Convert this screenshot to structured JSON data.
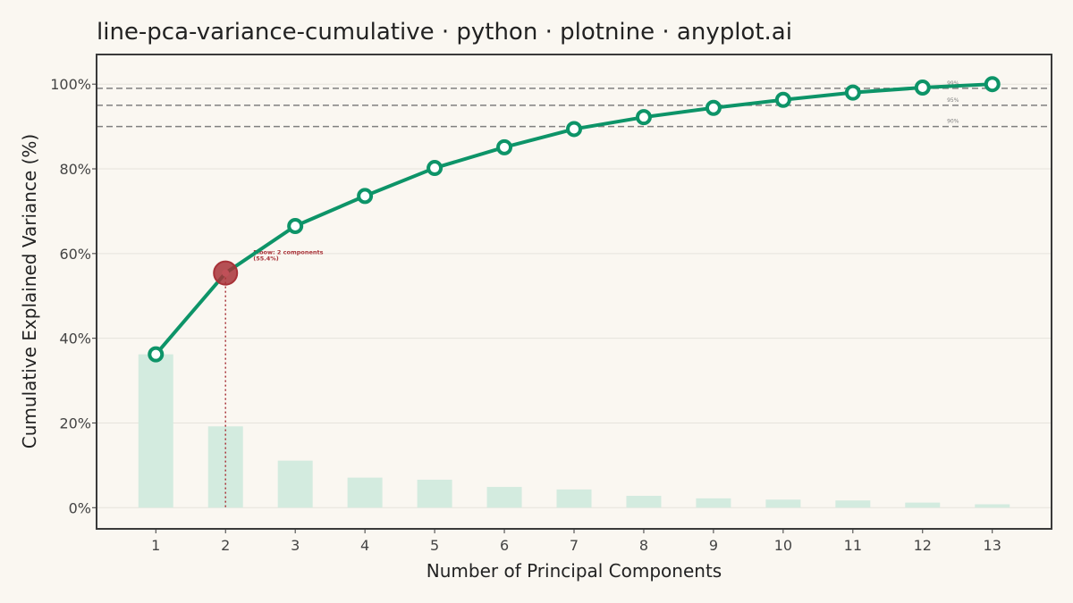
{
  "chart_data": {
    "type": "line",
    "title": "line-pca-variance-cumulative · python · plotnine · anyplot.ai",
    "xlabel": "Number of Principal Components",
    "ylabel": "Cumulative Explained Variance (%)",
    "x": [
      1,
      2,
      3,
      4,
      5,
      6,
      7,
      8,
      9,
      10,
      11,
      12,
      13
    ],
    "x_ticks": [
      "1",
      "2",
      "3",
      "4",
      "5",
      "6",
      "7",
      "8",
      "9",
      "10",
      "11",
      "12",
      "13"
    ],
    "y_ticks": [
      "0%",
      "20%",
      "40%",
      "60%",
      "80%",
      "100%"
    ],
    "ylim": [
      -5,
      107
    ],
    "xlim": [
      0.15,
      13.85
    ],
    "grid": true,
    "series": [
      {
        "name": "",
        "kind": "line",
        "color": "#0d9468",
        "values": [
          36.2,
          55.4,
          66.5,
          73.6,
          80.2,
          85.1,
          89.4,
          92.2,
          94.4,
          96.3,
          98.0,
          99.2,
          100.0
        ]
      },
      {
        "name": "",
        "kind": "bar",
        "color": "#d3ebdf",
        "values": [
          36.2,
          19.2,
          11.1,
          7.1,
          6.6,
          4.9,
          4.3,
          2.8,
          2.2,
          1.9,
          1.7,
          1.2,
          0.8
        ]
      }
    ],
    "thresholds": [
      {
        "value": 90,
        "label": "90%"
      },
      {
        "value": 95,
        "label": "95%"
      },
      {
        "value": 99,
        "label": "99%"
      }
    ],
    "elbow": {
      "x": 2,
      "y": 55.4,
      "color": "#a83238",
      "label_line1": "Elbow: 2 components",
      "label_line2": "(55.4%)"
    },
    "colors": {
      "background": "#faf7f1",
      "panel_border": "#3a3a3a",
      "grid": "#e6e3dc",
      "threshold": "#808080",
      "text": "#222222",
      "tick_text": "#444444"
    }
  }
}
